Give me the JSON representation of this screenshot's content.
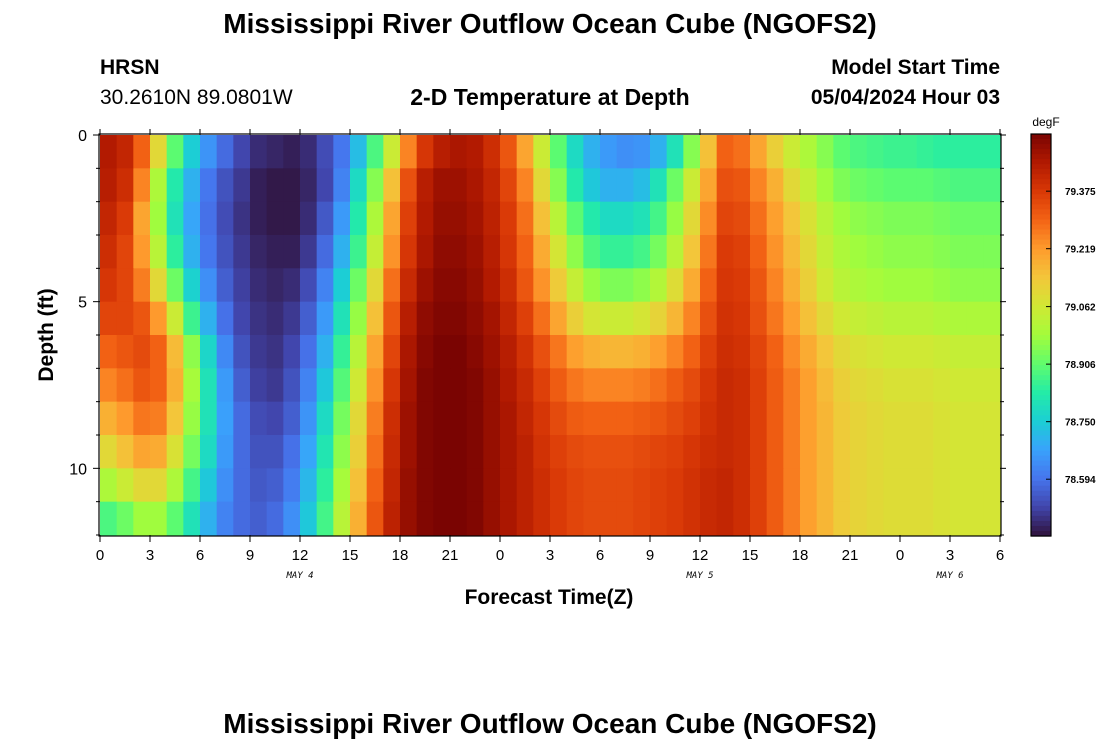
{
  "page": {
    "title_top": "Mississippi River Outflow Ocean Cube (NGOFS2)",
    "title_bottom": "Mississippi River Outflow Ocean Cube (NGOFS2)",
    "station_name": "HRSN",
    "station_coords": "30.2610N  89.0801W",
    "plot_title": "2-D Temperature at Depth",
    "model_start_label": "Model Start Time",
    "model_start_value": "05/04/2024 Hour 03"
  },
  "chart_data": {
    "type": "heatmap",
    "title": "2-D Temperature at Depth",
    "xlabel": "Forecast Time(Z)",
    "ylabel": "Depth (ft)",
    "x_ticks": [
      "0",
      "3",
      "6",
      "9",
      "12",
      "15",
      "18",
      "21",
      "0",
      "3",
      "6",
      "9",
      "12",
      "15",
      "18",
      "21",
      "0",
      "3",
      "6"
    ],
    "x_range_hours": [
      0,
      54
    ],
    "day_labels": [
      {
        "label": "MAY 4",
        "hour": 12
      },
      {
        "label": "MAY 5",
        "hour": 36
      },
      {
        "label": "MAY 6",
        "hour": 51
      }
    ],
    "y_ticks": [
      "0",
      "5",
      "10"
    ],
    "y_range_ft": [
      0,
      12
    ],
    "colorbar": {
      "unit": "degF",
      "ticks": [
        "79.375",
        "79.219",
        "79.062",
        "78.906",
        "78.750",
        "78.594"
      ],
      "range": [
        78.44,
        79.53
      ],
      "colors": [
        "#30123b",
        "#4145ab",
        "#4675ed",
        "#39a2fc",
        "#1bcfd4",
        "#24eca6",
        "#61fc6c",
        "#a4fc3b",
        "#d1e834",
        "#f3c63a",
        "#fe9b2d",
        "#f36315",
        "#d93806",
        "#b11901",
        "#7a0402"
      ]
    },
    "depth_levels_ft": [
      0.5,
      1.5,
      2.5,
      3.5,
      4.5,
      5.5,
      6.5,
      7.5,
      8.5,
      9.5,
      10.5,
      11.5
    ],
    "time_hours": [
      0,
      1,
      2,
      3,
      4,
      5,
      6,
      7,
      8,
      9,
      10,
      11,
      12,
      13,
      14,
      15,
      16,
      17,
      18,
      19,
      20,
      21,
      22,
      23,
      24,
      25,
      26,
      27,
      28,
      29,
      30,
      31,
      32,
      33,
      34,
      35,
      36,
      37,
      38,
      39,
      40,
      41,
      42,
      43,
      44,
      45,
      46,
      47,
      48,
      49,
      50,
      51,
      52,
      53
    ],
    "temperature_degF": [
      [
        79.45,
        79.42,
        79.3,
        79.1,
        78.9,
        78.75,
        78.65,
        78.58,
        78.52,
        78.48,
        78.47,
        78.46,
        78.48,
        78.53,
        78.6,
        78.72,
        78.88,
        79.05,
        79.25,
        79.38,
        79.44,
        79.46,
        79.45,
        79.4,
        79.32,
        79.2,
        79.05,
        78.9,
        78.78,
        78.7,
        78.66,
        78.64,
        78.65,
        78.7,
        78.8,
        78.95,
        79.15,
        79.3,
        79.28,
        79.2,
        79.12,
        79.05,
        79.0,
        78.95,
        78.9,
        78.88,
        78.87,
        78.86,
        78.86,
        78.85,
        78.84,
        78.84,
        78.84,
        78.84
      ],
      [
        79.44,
        79.4,
        79.25,
        79.0,
        78.82,
        78.7,
        78.6,
        78.54,
        78.5,
        78.46,
        78.45,
        78.45,
        78.47,
        78.52,
        78.62,
        78.78,
        78.95,
        79.15,
        79.33,
        79.44,
        79.48,
        79.48,
        79.46,
        79.42,
        79.35,
        79.25,
        79.1,
        78.95,
        78.82,
        78.74,
        78.7,
        78.7,
        78.72,
        78.8,
        78.92,
        79.05,
        79.2,
        79.33,
        79.32,
        79.25,
        79.18,
        79.1,
        79.04,
        78.98,
        78.94,
        78.92,
        78.91,
        78.9,
        78.9,
        78.9,
        78.89,
        78.88,
        78.88,
        78.88
      ],
      [
        79.42,
        79.37,
        79.2,
        78.98,
        78.8,
        78.68,
        78.59,
        78.53,
        78.49,
        78.46,
        78.45,
        78.45,
        78.48,
        78.55,
        78.66,
        78.82,
        79.0,
        79.2,
        79.36,
        79.45,
        79.49,
        79.49,
        79.47,
        79.43,
        79.37,
        79.28,
        79.15,
        79.02,
        78.9,
        78.82,
        78.78,
        78.78,
        78.8,
        78.87,
        78.97,
        79.1,
        79.24,
        79.35,
        79.34,
        79.28,
        79.21,
        79.14,
        79.08,
        79.02,
        78.98,
        78.96,
        78.95,
        78.94,
        78.94,
        78.94,
        78.93,
        78.92,
        78.92,
        78.92
      ],
      [
        79.4,
        79.35,
        79.22,
        79.02,
        78.84,
        78.7,
        78.6,
        78.54,
        78.5,
        78.47,
        78.46,
        78.46,
        78.5,
        78.58,
        78.7,
        78.86,
        79.04,
        79.23,
        79.38,
        79.46,
        79.5,
        79.5,
        79.48,
        79.44,
        79.38,
        79.3,
        79.19,
        79.07,
        78.96,
        78.88,
        78.85,
        78.85,
        78.87,
        78.93,
        79.02,
        79.14,
        79.27,
        79.37,
        79.36,
        79.3,
        79.23,
        79.16,
        79.1,
        79.04,
        79.0,
        78.98,
        78.97,
        78.96,
        78.96,
        78.96,
        78.95,
        78.94,
        78.94,
        78.94
      ],
      [
        79.38,
        79.35,
        79.26,
        79.1,
        78.92,
        78.76,
        78.64,
        78.56,
        78.51,
        78.48,
        78.47,
        78.48,
        78.53,
        78.62,
        78.75,
        78.92,
        79.1,
        79.28,
        79.41,
        79.48,
        79.51,
        79.51,
        79.49,
        79.45,
        79.4,
        79.32,
        79.23,
        79.13,
        79.04,
        78.97,
        78.94,
        78.94,
        78.96,
        79.01,
        79.09,
        79.19,
        79.3,
        79.38,
        79.37,
        79.32,
        79.25,
        79.18,
        79.12,
        79.06,
        79.02,
        79.0,
        78.99,
        78.98,
        78.98,
        78.98,
        78.97,
        78.96,
        78.96,
        78.96
      ],
      [
        79.35,
        79.35,
        79.32,
        79.22,
        79.05,
        78.86,
        78.7,
        78.59,
        78.52,
        78.49,
        78.48,
        78.5,
        78.56,
        78.66,
        78.8,
        78.97,
        79.15,
        79.32,
        79.44,
        79.5,
        79.52,
        79.52,
        79.5,
        79.47,
        79.42,
        79.36,
        79.28,
        79.2,
        79.12,
        79.07,
        79.05,
        79.05,
        79.07,
        79.11,
        79.17,
        79.25,
        79.33,
        79.39,
        79.38,
        79.33,
        79.27,
        79.21,
        79.15,
        79.1,
        79.06,
        79.04,
        79.03,
        79.02,
        79.02,
        79.02,
        79.01,
        79.0,
        79.0,
        79.0
      ],
      [
        79.3,
        79.32,
        79.34,
        79.3,
        79.16,
        78.96,
        78.77,
        78.63,
        78.54,
        78.5,
        78.49,
        78.52,
        78.59,
        78.7,
        78.85,
        79.02,
        79.2,
        79.35,
        79.46,
        79.51,
        79.53,
        79.53,
        79.51,
        79.48,
        79.44,
        79.39,
        79.33,
        79.27,
        79.21,
        79.18,
        79.17,
        79.17,
        79.18,
        79.21,
        79.25,
        79.3,
        79.36,
        79.4,
        79.39,
        79.35,
        79.3,
        79.24,
        79.19,
        79.14,
        79.1,
        79.08,
        79.07,
        79.06,
        79.06,
        79.06,
        79.05,
        79.04,
        79.04,
        79.04
      ],
      [
        79.25,
        79.28,
        79.32,
        79.3,
        79.18,
        78.99,
        78.8,
        78.66,
        78.56,
        78.51,
        78.5,
        78.54,
        78.62,
        78.74,
        78.89,
        79.06,
        79.23,
        79.38,
        79.47,
        79.52,
        79.53,
        79.53,
        79.52,
        79.49,
        79.45,
        79.41,
        79.36,
        79.31,
        79.27,
        79.25,
        79.25,
        79.25,
        79.26,
        79.28,
        79.31,
        79.34,
        79.38,
        79.41,
        79.4,
        79.36,
        79.31,
        79.26,
        79.21,
        79.16,
        79.12,
        79.1,
        79.09,
        79.08,
        79.08,
        79.08,
        79.07,
        79.06,
        79.06,
        79.06
      ],
      [
        79.18,
        79.22,
        79.27,
        79.26,
        79.14,
        78.97,
        78.8,
        78.67,
        78.58,
        78.53,
        78.52,
        78.56,
        78.65,
        78.78,
        78.93,
        79.1,
        79.26,
        79.4,
        79.48,
        79.52,
        79.53,
        79.53,
        79.52,
        79.49,
        79.46,
        79.42,
        79.38,
        79.34,
        79.31,
        79.3,
        79.3,
        79.3,
        79.31,
        79.32,
        79.34,
        79.36,
        79.39,
        79.41,
        79.4,
        79.36,
        79.31,
        79.26,
        79.21,
        79.17,
        79.13,
        79.11,
        79.1,
        79.09,
        79.09,
        79.09,
        79.08,
        79.07,
        79.07,
        79.07
      ],
      [
        79.1,
        79.15,
        79.2,
        79.19,
        79.08,
        78.93,
        78.78,
        78.66,
        78.58,
        78.54,
        78.54,
        78.59,
        78.68,
        78.81,
        78.96,
        79.12,
        79.28,
        79.41,
        79.48,
        79.52,
        79.53,
        79.53,
        79.52,
        79.49,
        79.46,
        79.43,
        79.39,
        79.36,
        79.34,
        79.33,
        79.33,
        79.33,
        79.34,
        79.35,
        79.36,
        79.38,
        79.4,
        79.41,
        79.4,
        79.36,
        79.31,
        79.26,
        79.21,
        79.17,
        79.13,
        79.11,
        79.1,
        79.09,
        79.09,
        79.09,
        79.08,
        79.07,
        79.07,
        79.07
      ],
      [
        79.0,
        79.05,
        79.1,
        79.1,
        79.0,
        78.87,
        78.74,
        78.64,
        78.58,
        78.55,
        78.56,
        78.61,
        78.71,
        78.84,
        78.99,
        79.15,
        79.3,
        79.42,
        79.49,
        79.52,
        79.53,
        79.53,
        79.52,
        79.49,
        79.46,
        79.43,
        79.4,
        79.37,
        79.35,
        79.34,
        79.34,
        79.34,
        79.35,
        79.36,
        79.37,
        79.39,
        79.41,
        79.42,
        79.4,
        79.36,
        79.31,
        79.26,
        79.21,
        79.17,
        79.13,
        79.11,
        79.1,
        79.09,
        79.09,
        79.09,
        79.08,
        79.07,
        79.07,
        79.07
      ],
      [
        78.88,
        78.92,
        78.98,
        78.98,
        78.9,
        78.8,
        78.7,
        78.62,
        78.58,
        78.56,
        78.58,
        78.64,
        78.74,
        78.87,
        79.02,
        79.18,
        79.32,
        79.43,
        79.49,
        79.52,
        79.53,
        79.53,
        79.52,
        79.49,
        79.46,
        79.43,
        79.4,
        79.37,
        79.35,
        79.34,
        79.34,
        79.34,
        79.35,
        79.36,
        79.37,
        79.39,
        79.41,
        79.42,
        79.4,
        79.36,
        79.31,
        79.26,
        79.21,
        79.17,
        79.13,
        79.11,
        79.1,
        79.09,
        79.09,
        79.09,
        79.08,
        79.07,
        79.07,
        79.07
      ]
    ]
  }
}
